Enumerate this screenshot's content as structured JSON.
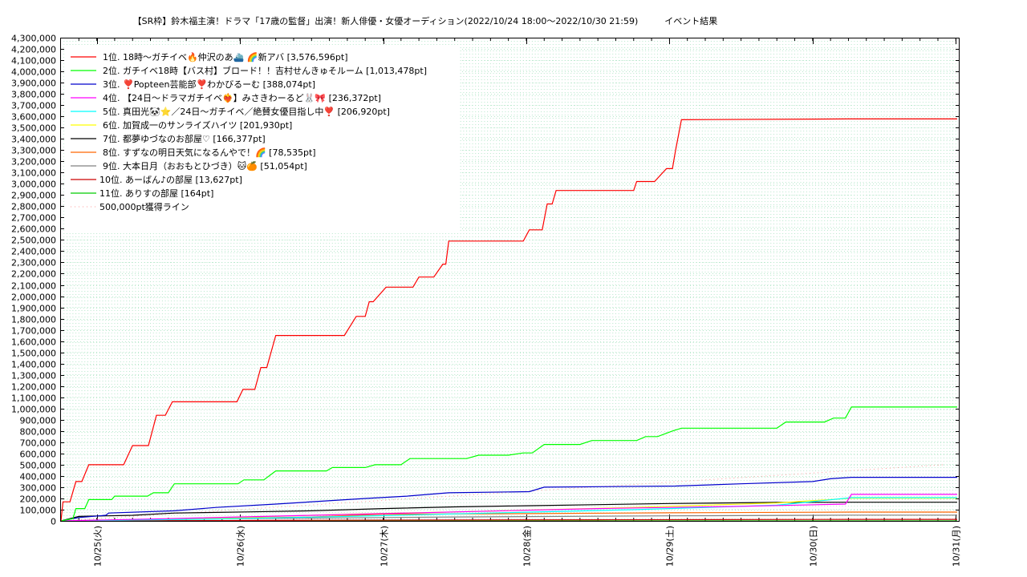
{
  "chart_data": {
    "type": "line",
    "title": "【SR枠】鈴木福主演！ドラマ「17歳の監督」出演！新人俳優・女優オーディション(2022/10/24 18:00～2022/10/30 21:59)　　　イベント結果",
    "xlabel": "",
    "ylabel": "",
    "x_range": [
      "2022-10-24 18:00",
      "2022-10-31 00:30"
    ],
    "ylim": [
      0,
      4300000
    ],
    "y_step": 100000,
    "y_tick_labels": [
      "0",
      "100,000",
      "200,000",
      "300,000",
      "400,000",
      "500,000",
      "600,000",
      "700,000",
      "800,000",
      "900,000",
      "1,000,000",
      "1,100,000",
      "1,200,000",
      "1,300,000",
      "1,400,000",
      "1,500,000",
      "1,600,000",
      "1,700,000",
      "1,800,000",
      "1,900,000",
      "2,000,000",
      "2,100,000",
      "2,200,000",
      "2,300,000",
      "2,400,000",
      "2,500,000",
      "2,600,000",
      "2,700,000",
      "2,800,000",
      "2,900,000",
      "3,000,000",
      "3,100,000",
      "3,200,000",
      "3,300,000",
      "3,400,000",
      "3,500,000",
      "3,600,000",
      "3,700,000",
      "3,800,000",
      "3,900,000",
      "4,000,000",
      "4,100,000",
      "4,200,000",
      "4,300,000"
    ],
    "x_tick_labels": [
      {
        "label": "10/25(火)",
        "at": "2022-10-25 00:00"
      },
      {
        "label": "10/26(水)",
        "at": "2022-10-26 00:00"
      },
      {
        "label": "10/27(木)",
        "at": "2022-10-27 00:00"
      },
      {
        "label": "10/28(金)",
        "at": "2022-10-28 00:00"
      },
      {
        "label": "10/29(土)",
        "at": "2022-10-29 00:00"
      },
      {
        "label": "10/30(日)",
        "at": "2022-10-30 00:00"
      },
      {
        "label": "10/31(月)",
        "at": "2022-10-31 00:00"
      }
    ],
    "grid": true,
    "legend_position": "top-left",
    "series": [
      {
        "name": "1位. 18時～ガチイベ🔥仲沢のあ⛴️ 🌈新アバ [3,576,596pt]",
        "color": "#ff0000",
        "points": [
          [
            "2022-10-24 18:00",
            0
          ],
          [
            "2022-10-24 18:20",
            170000
          ],
          [
            "2022-10-24 19:30",
            170000
          ],
          [
            "2022-10-24 20:30",
            350000
          ],
          [
            "2022-10-24 21:30",
            350000
          ],
          [
            "2022-10-24 22:40",
            500000
          ],
          [
            "2022-10-25 04:30",
            500000
          ],
          [
            "2022-10-25 06:00",
            670000
          ],
          [
            "2022-10-25 07:30",
            670000
          ],
          [
            "2022-10-25 08:40",
            670000
          ],
          [
            "2022-10-25 10:00",
            940000
          ],
          [
            "2022-10-25 11:30",
            940000
          ],
          [
            "2022-10-25 12:40",
            1060000
          ],
          [
            "2022-10-25 23:30",
            1060000
          ],
          [
            "2022-10-26 00:30",
            1170000
          ],
          [
            "2022-10-26 02:30",
            1170000
          ],
          [
            "2022-10-26 03:30",
            1365000
          ],
          [
            "2022-10-26 04:30",
            1365000
          ],
          [
            "2022-10-26 06:00",
            1650000
          ],
          [
            "2022-10-26 17:30",
            1650000
          ],
          [
            "2022-10-26 19:30",
            1820000
          ],
          [
            "2022-10-26 21:00",
            1820000
          ],
          [
            "2022-10-26 21:40",
            1950000
          ],
          [
            "2022-10-26 22:20",
            1950000
          ],
          [
            "2022-10-27 00:30",
            2080000
          ],
          [
            "2022-10-27 05:00",
            2080000
          ],
          [
            "2022-10-27 06:00",
            2170000
          ],
          [
            "2022-10-27 08:30",
            2170000
          ],
          [
            "2022-10-27 10:00",
            2285000
          ],
          [
            "2022-10-27 10:30",
            2285000
          ],
          [
            "2022-10-27 11:00",
            2490000
          ],
          [
            "2022-10-27 23:30",
            2490000
          ],
          [
            "2022-10-28 00:30",
            2590000
          ],
          [
            "2022-10-28 01:30",
            2590000
          ],
          [
            "2022-10-28 02:40",
            2590000
          ],
          [
            "2022-10-28 03:30",
            2820000
          ],
          [
            "2022-10-28 04:20",
            2820000
          ],
          [
            "2022-10-28 05:00",
            2940000
          ],
          [
            "2022-10-28 18:00",
            2940000
          ],
          [
            "2022-10-28 18:30",
            3020000
          ],
          [
            "2022-10-28 20:30",
            3020000
          ],
          [
            "2022-10-28 21:30",
            3020000
          ],
          [
            "2022-10-28 23:30",
            3135000
          ],
          [
            "2022-10-29 00:30",
            3135000
          ],
          [
            "2022-10-29 01:00",
            3290000
          ],
          [
            "2022-10-29 02:00",
            3570000
          ],
          [
            "2022-10-30 06:00",
            3576596
          ]
        ]
      },
      {
        "name": "2位. ガチイベ18時【バス村】ブロード！！吉村せんきゅそルーム [1,013,478pt]",
        "color": "#00ff00",
        "points": [
          [
            "2022-10-24 18:00",
            0
          ],
          [
            "2022-10-24 20:00",
            20000
          ],
          [
            "2022-10-24 20:30",
            110000
          ],
          [
            "2022-10-24 22:00",
            110000
          ],
          [
            "2022-10-24 22:40",
            190000
          ],
          [
            "2022-10-25 02:30",
            190000
          ],
          [
            "2022-10-25 03:00",
            220000
          ],
          [
            "2022-10-25 08:30",
            220000
          ],
          [
            "2022-10-25 09:30",
            250000
          ],
          [
            "2022-10-25 12:00",
            250000
          ],
          [
            "2022-10-25 13:00",
            330000
          ],
          [
            "2022-10-25 23:40",
            330000
          ],
          [
            "2022-10-26 00:40",
            365000
          ],
          [
            "2022-10-26 04:00",
            365000
          ],
          [
            "2022-10-26 06:00",
            445000
          ],
          [
            "2022-10-26 14:30",
            445000
          ],
          [
            "2022-10-26 15:30",
            475000
          ],
          [
            "2022-10-26 21:00",
            475000
          ],
          [
            "2022-10-26 22:40",
            500000
          ],
          [
            "2022-10-27 03:00",
            500000
          ],
          [
            "2022-10-27 04:30",
            555000
          ],
          [
            "2022-10-27 14:00",
            555000
          ],
          [
            "2022-10-27 16:00",
            585000
          ],
          [
            "2022-10-27 21:00",
            585000
          ],
          [
            "2022-10-27 23:30",
            605000
          ],
          [
            "2022-10-28 01:00",
            605000
          ],
          [
            "2022-10-28 03:00",
            680000
          ],
          [
            "2022-10-28 09:00",
            680000
          ],
          [
            "2022-10-28 11:00",
            715000
          ],
          [
            "2022-10-28 18:30",
            715000
          ],
          [
            "2022-10-28 20:00",
            750000
          ],
          [
            "2022-10-28 22:00",
            750000
          ],
          [
            "2022-10-29 00:30",
            800000
          ],
          [
            "2022-10-29 02:00",
            825000
          ],
          [
            "2022-10-29 18:00",
            825000
          ],
          [
            "2022-10-29 19:30",
            880000
          ],
          [
            "2022-10-30 02:00",
            880000
          ],
          [
            "2022-10-30 03:30",
            915000
          ],
          [
            "2022-10-30 05:30",
            915000
          ],
          [
            "2022-10-30 06:30",
            1013478
          ]
        ]
      },
      {
        "name": "3位. ❣️Popteen芸能部❣️わかびるーむ [388,074pt]",
        "color": "#0000cc",
        "points": [
          [
            "2022-10-24 18:00",
            0
          ],
          [
            "2022-10-24 21:00",
            30000
          ],
          [
            "2022-10-25 01:30",
            50000
          ],
          [
            "2022-10-25 02:00",
            70000
          ],
          [
            "2022-10-25 13:00",
            90000
          ],
          [
            "2022-10-25 20:00",
            120000
          ],
          [
            "2022-10-26 06:00",
            150000
          ],
          [
            "2022-10-26 21:00",
            200000
          ],
          [
            "2022-10-27 04:00",
            220000
          ],
          [
            "2022-10-27 11:00",
            250000
          ],
          [
            "2022-10-28 00:30",
            260000
          ],
          [
            "2022-10-28 03:00",
            300000
          ],
          [
            "2022-10-29 01:00",
            310000
          ],
          [
            "2022-10-29 12:00",
            330000
          ],
          [
            "2022-10-30 00:00",
            350000
          ],
          [
            "2022-10-30 03:00",
            375000
          ],
          [
            "2022-10-30 06:30",
            388074
          ]
        ]
      },
      {
        "name": "4位. 【24日～ドラマガチイベ❤️‍🔥】みさきわーるど🐰🎀 [236,372pt]",
        "color": "#ff00ff",
        "points": [
          [
            "2022-10-24 18:00",
            0
          ],
          [
            "2022-10-25 12:00",
            20000
          ],
          [
            "2022-10-26 12:00",
            50000
          ],
          [
            "2022-10-27 12:00",
            80000
          ],
          [
            "2022-10-28 12:00",
            110000
          ],
          [
            "2022-10-29 12:00",
            130000
          ],
          [
            "2022-10-30 05:30",
            150000
          ],
          [
            "2022-10-30 06:30",
            236372
          ]
        ]
      },
      {
        "name": "5位. 真田光🐼⭐️／24日～ガチイベ／絶賛女優目指し中❣️ [206,920pt]",
        "color": "#00ffff",
        "points": [
          [
            "2022-10-24 18:00",
            0
          ],
          [
            "2022-10-25 18:00",
            15000
          ],
          [
            "2022-10-26 18:00",
            40000
          ],
          [
            "2022-10-27 18:00",
            70000
          ],
          [
            "2022-10-28 18:00",
            100000
          ],
          [
            "2022-10-29 18:00",
            140000
          ],
          [
            "2022-10-30 06:30",
            206920
          ]
        ]
      },
      {
        "name": "6位. 加賀成一のサンライズハイツ [201,930pt]",
        "color": "#ffff00",
        "points": [
          [
            "2022-10-24 18:00",
            0
          ],
          [
            "2022-10-25 18:00",
            20000
          ],
          [
            "2022-10-26 18:00",
            60000
          ],
          [
            "2022-10-27 12:00",
            80000
          ],
          [
            "2022-10-28 18:00",
            120000
          ],
          [
            "2022-10-29 18:00",
            160000
          ],
          [
            "2022-10-30 06:30",
            201930
          ]
        ]
      },
      {
        "name": "7位. 都夢ゆづなのお部屋♡ [166,377pt]",
        "color": "#000000",
        "points": [
          [
            "2022-10-24 18:00",
            0
          ],
          [
            "2022-10-24 21:00",
            40000
          ],
          [
            "2022-10-25 06:00",
            50000
          ],
          [
            "2022-10-25 13:00",
            70000
          ],
          [
            "2022-10-26 01:00",
            80000
          ],
          [
            "2022-10-26 12:00",
            90000
          ],
          [
            "2022-10-27 00:00",
            110000
          ],
          [
            "2022-10-27 12:00",
            125000
          ],
          [
            "2022-10-28 00:00",
            135000
          ],
          [
            "2022-10-28 12:00",
            145000
          ],
          [
            "2022-10-29 00:00",
            155000
          ],
          [
            "2022-10-29 18:00",
            165000
          ],
          [
            "2022-10-30 06:30",
            166377
          ]
        ]
      },
      {
        "name": "8位. すずなの明日天気になるんやで！🌈 [78,535pt]",
        "color": "#ff6600",
        "points": [
          [
            "2022-10-24 18:00",
            0
          ],
          [
            "2022-10-25 12:00",
            15000
          ],
          [
            "2022-10-26 12:00",
            35000
          ],
          [
            "2022-10-27 00:00",
            60000
          ],
          [
            "2022-10-28 00:00",
            65000
          ],
          [
            "2022-10-29 00:00",
            72000
          ],
          [
            "2022-10-30 06:30",
            78535
          ]
        ]
      },
      {
        "name": "9位. 大本日月（おおもとひづき）🐱🍊 [51,054pt]",
        "color": "#808080",
        "points": [
          [
            "2022-10-24 18:00",
            0
          ],
          [
            "2022-10-26 00:00",
            20000
          ],
          [
            "2022-10-27 12:00",
            35000
          ],
          [
            "2022-10-29 00:00",
            45000
          ],
          [
            "2022-10-30 06:30",
            51054
          ]
        ]
      },
      {
        "name": "10位. あーばん♪の部屋 [13,627pt]",
        "color": "#cc0000",
        "points": [
          [
            "2022-10-24 18:00",
            0
          ],
          [
            "2022-10-26 12:00",
            6000
          ],
          [
            "2022-10-28 12:00",
            10000
          ],
          [
            "2022-10-30 06:30",
            13627
          ]
        ]
      },
      {
        "name": "11位. ありすの部屋 [164pt]",
        "color": "#00cc00",
        "points": [
          [
            "2022-10-24 18:00",
            0
          ],
          [
            "2022-10-30 06:30",
            164
          ]
        ]
      },
      {
        "name": "500,000pt獲得ライン",
        "color": "#ff9999",
        "dotted": true,
        "points": [
          [
            "2022-10-24 18:00",
            0
          ],
          [
            "2022-10-30 21:59",
            500000
          ]
        ]
      }
    ]
  }
}
